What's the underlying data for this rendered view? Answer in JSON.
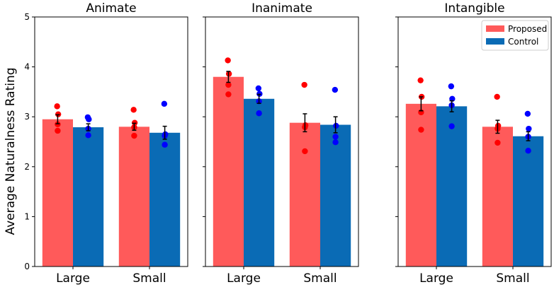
{
  "chart_data": {
    "type": "bar",
    "ylabel": "Average Naturalness Rating",
    "ylim": [
      0,
      5
    ],
    "yticks": [
      "0",
      "1",
      "2",
      "3",
      "4",
      "5"
    ],
    "categories": [
      "Large",
      "Small"
    ],
    "legend": {
      "placement": "top-right of third panel",
      "entries": [
        {
          "name": "Proposed",
          "color": "#FF5A5A"
        },
        {
          "name": "Control",
          "color": "#0A6BB5"
        }
      ]
    },
    "series_names": [
      "Proposed",
      "Control"
    ],
    "colors": {
      "proposed_bar": "#FF5A5A",
      "control_bar": "#0A6BB5",
      "proposed_dot": "#FF0000",
      "control_dot": "#0000FF"
    },
    "panels": [
      {
        "title": "Animate",
        "groups": [
          {
            "category": "Large",
            "proposed": {
              "value": 2.95,
              "err": 0.09,
              "points": [
                3.21,
                3.05,
                2.85,
                2.72
              ]
            },
            "control": {
              "value": 2.79,
              "err": 0.07,
              "points": [
                2.99,
                2.95,
                2.76,
                2.63
              ]
            }
          },
          {
            "category": "Small",
            "proposed": {
              "value": 2.8,
              "err": 0.07,
              "points": [
                3.14,
                2.88,
                2.79,
                2.62
              ]
            },
            "control": {
              "value": 2.68,
              "err": 0.13,
              "points": [
                3.26,
                2.65,
                2.62,
                2.44
              ]
            }
          }
        ]
      },
      {
        "title": "Inanimate",
        "groups": [
          {
            "category": "Large",
            "proposed": {
              "value": 3.8,
              "err": 0.11,
              "points": [
                4.13,
                3.86,
                3.64,
                3.45
              ]
            },
            "control": {
              "value": 3.36,
              "err": 0.09,
              "points": [
                3.57,
                3.46,
                3.31,
                3.07
              ]
            }
          },
          {
            "category": "Small",
            "proposed": {
              "value": 2.88,
              "err": 0.18,
              "points": [
                3.64,
                2.83,
                2.79,
                2.31
              ]
            },
            "control": {
              "value": 2.84,
              "err": 0.16,
              "points": [
                3.54,
                2.82,
                2.6,
                2.49
              ]
            }
          }
        ]
      },
      {
        "title": "Intangible",
        "groups": [
          {
            "category": "Large",
            "proposed": {
              "value": 3.26,
              "err": 0.14,
              "points": [
                3.73,
                3.4,
                3.09,
                2.74
              ]
            },
            "control": {
              "value": 3.21,
              "err": 0.11,
              "points": [
                3.61,
                3.36,
                3.23,
                2.81
              ]
            }
          },
          {
            "category": "Small",
            "proposed": {
              "value": 2.8,
              "err": 0.13,
              "points": [
                3.4,
                2.82,
                2.76,
                2.48
              ]
            },
            "control": {
              "value": 2.61,
              "err": 0.09,
              "points": [
                3.06,
                2.76,
                2.6,
                2.32
              ]
            }
          }
        ]
      }
    ]
  }
}
